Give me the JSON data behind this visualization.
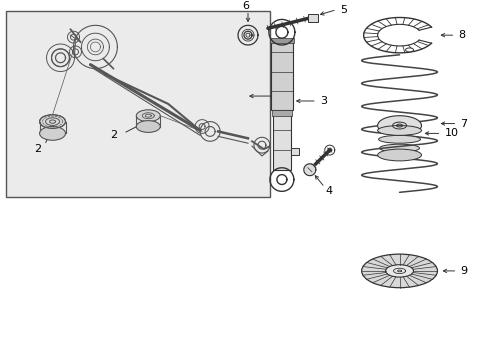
{
  "bg": "#ffffff",
  "box_bg": "#e8e8e8",
  "box_edge": "#555555",
  "lc": "#333333",
  "lc2": "#555555",
  "fig_w": 4.89,
  "fig_h": 3.6,
  "dpi": 100
}
